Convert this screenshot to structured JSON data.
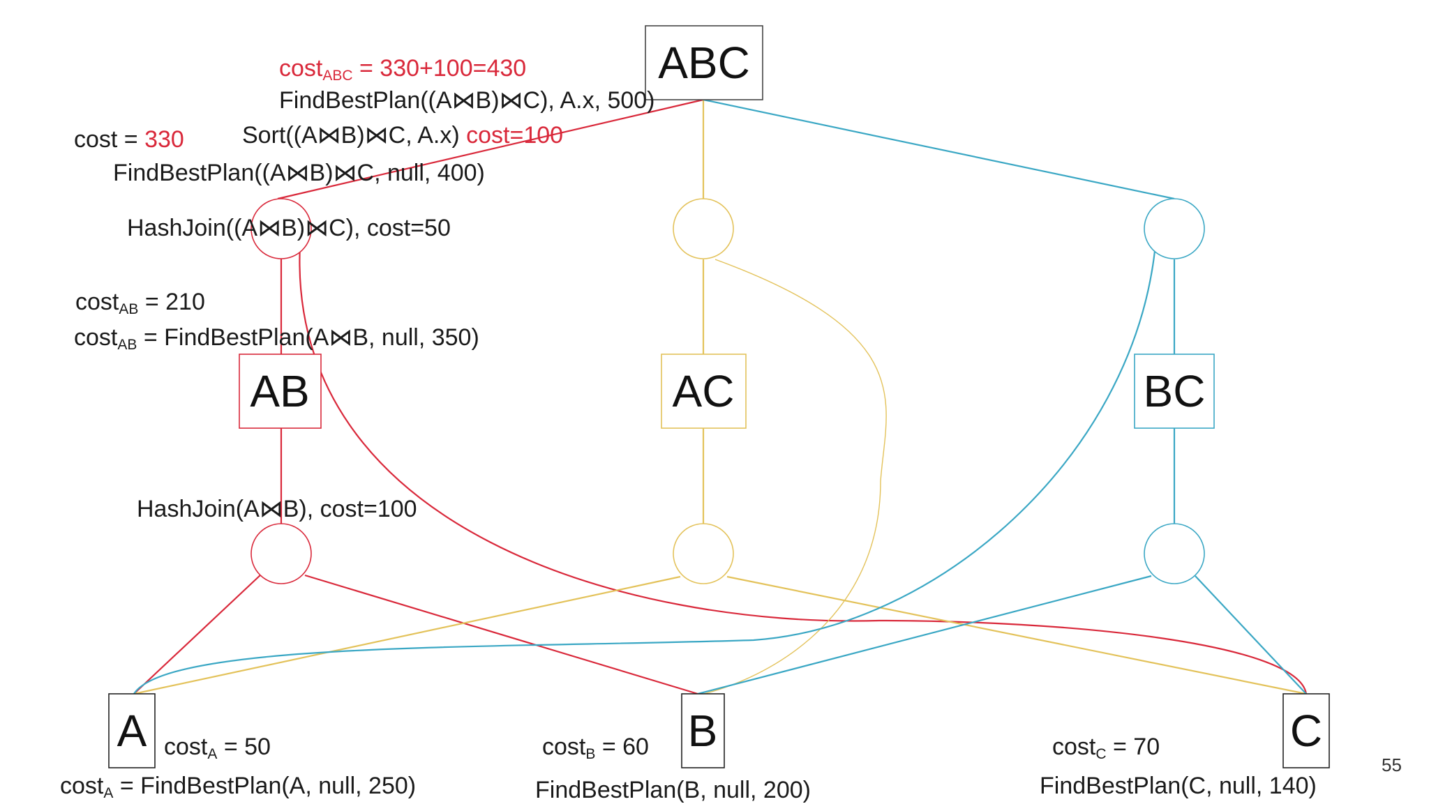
{
  "colors": {
    "red": "#d9283a",
    "yellow": "#e3c25a",
    "blue": "#3aa7c4",
    "black": "#222222"
  },
  "nodes": {
    "abc": "ABC",
    "ab": "AB",
    "ac": "AC",
    "bc": "BC",
    "a": "A",
    "b": "B",
    "c": "C"
  },
  "annotations": {
    "cost_abc_prefix": "cost",
    "cost_abc_sub": "ABC",
    "cost_abc_value": " = 330+100=430",
    "find_abc": "FindBestPlan((A⋈B)⋈C), A.x, 500)",
    "cost_left_prefix": "cost = ",
    "cost_left_value": "330",
    "sort_text": "Sort((A⋈B)⋈C, A.x) ",
    "sort_cost": "cost=100",
    "find_ab_c": "FindBestPlan((A⋈B)⋈C, null, 400)",
    "hashjoin_abc": "HashJoin((A⋈B)⋈C), cost=50",
    "cost_ab1_prefix": "cost",
    "cost_ab1_sub": "AB",
    "cost_ab1_value": " = 210",
    "cost_ab2_prefix": "cost",
    "cost_ab2_sub": "AB",
    "cost_ab2_value": " = FindBestPlan(A⋈B, null, 350)",
    "hashjoin_ab": "HashJoin(A⋈B), cost=100",
    "cost_a1_prefix": "cost",
    "cost_a1_sub": "A",
    "cost_a1_value": " = 50",
    "cost_a2_prefix": "cost",
    "cost_a2_sub": "A",
    "cost_a2_value": " = FindBestPlan(A, null, 250)",
    "cost_b_prefix": "cost",
    "cost_b_sub": "B",
    "cost_b_value": " = 60",
    "find_b": "FindBestPlan(B, null, 200)",
    "cost_c_prefix": "cost",
    "cost_c_sub": "C",
    "cost_c_value": " = 70",
    "find_c": "FindBestPlan(C, null, 140)"
  },
  "slide_number": "55"
}
